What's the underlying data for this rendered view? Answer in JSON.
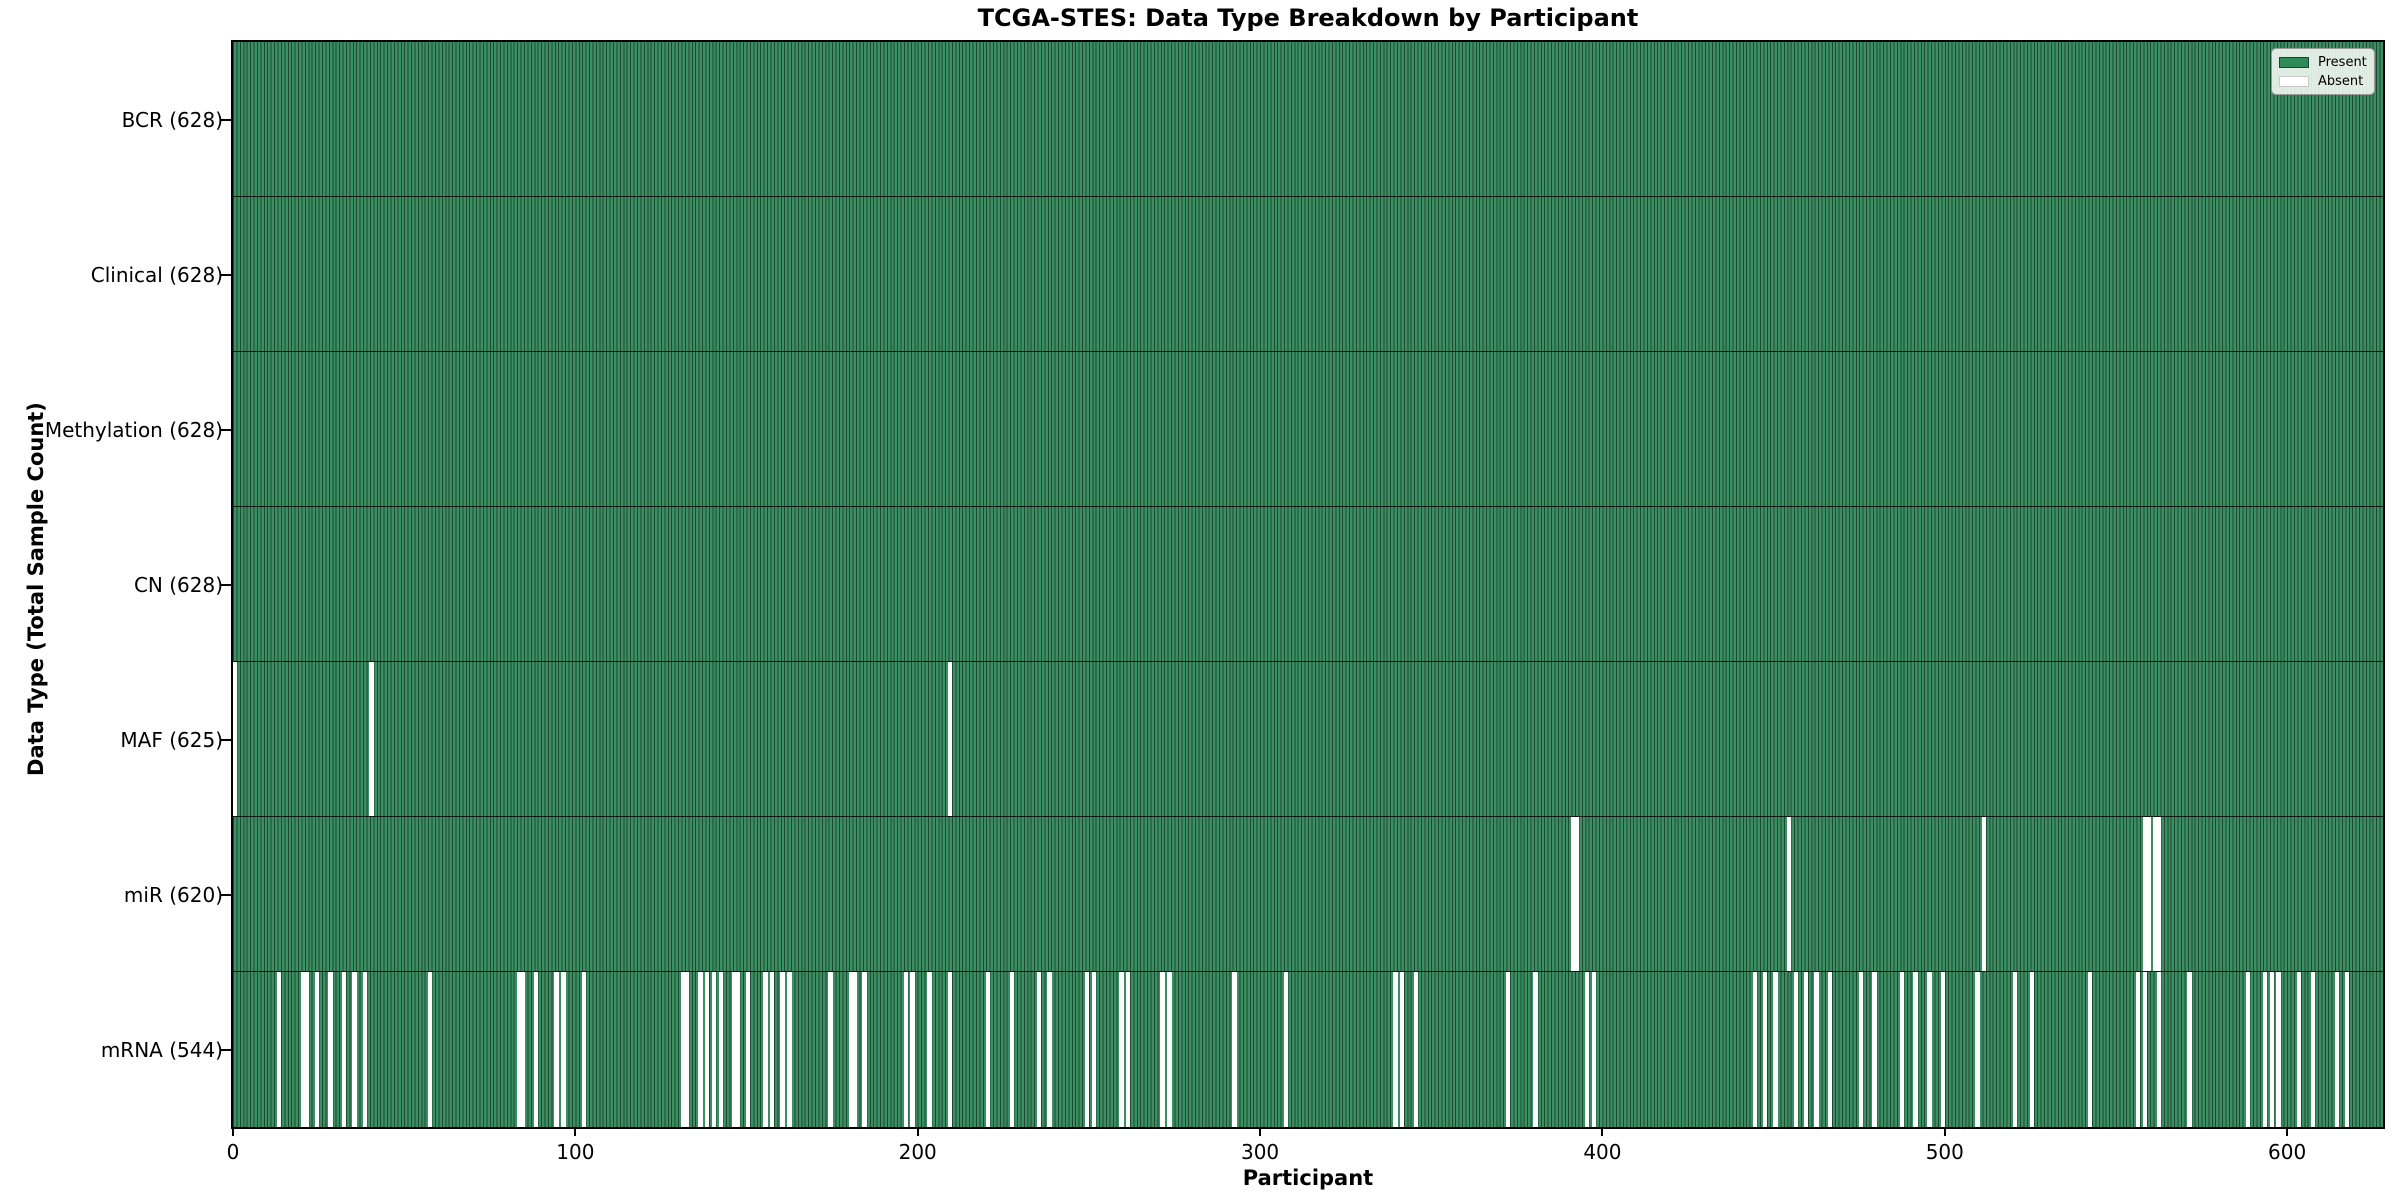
{
  "title": "TCGA-STES: Data Type Breakdown by Participant",
  "xlabel": "Participant",
  "ylabel": "Data Type (Total Sample Count)",
  "legend": {
    "present_label": "Present",
    "absent_label": "Absent"
  },
  "colors": {
    "present_fill": "#3C8F63",
    "present_edge": "#1C4A31",
    "absent": "#FFFFFF",
    "legend_present_swatch": "#2E8B57",
    "row_divider": "#0a0a0a",
    "axis": "#000000",
    "background": "#FFFFFF"
  },
  "chart_data": {
    "type": "heatmap",
    "title": "TCGA-STES: Data Type Breakdown by Participant",
    "xlabel": "Participant",
    "ylabel": "Data Type (Total Sample Count)",
    "legend_entries": [
      "Present",
      "Absent"
    ],
    "legend_position": "upper right",
    "n_participants": 628,
    "x_ticks": [
      0,
      100,
      200,
      300,
      400,
      500,
      600
    ],
    "value_encoding": {
      "present": "green",
      "absent": "white"
    },
    "rows": [
      {
        "name": "BCR",
        "label": "BCR (628)",
        "total": 628,
        "absent": []
      },
      {
        "name": "Clinical",
        "label": "Clinical (628)",
        "total": 628,
        "absent": []
      },
      {
        "name": "Methylation",
        "label": "Methylation (628)",
        "total": 628,
        "absent": []
      },
      {
        "name": "CN",
        "label": "CN (628)",
        "total": 628,
        "absent": []
      },
      {
        "name": "MAF",
        "label": "MAF (625)",
        "total": 625,
        "absent": [
          0,
          40,
          209
        ]
      },
      {
        "name": "miR",
        "label": "miR (620)",
        "total": 620,
        "absent": [
          391,
          392,
          454,
          511,
          558,
          559,
          561,
          562
        ]
      },
      {
        "name": "mRNA",
        "label": "mRNA (544)",
        "total": 544,
        "absent": [
          13,
          20,
          21,
          24,
          28,
          32,
          35,
          38,
          57,
          83,
          84,
          88,
          94,
          96,
          102,
          131,
          132,
          136,
          138,
          140,
          142,
          146,
          147,
          150,
          155,
          157,
          160,
          162,
          174,
          180,
          181,
          184,
          196,
          198,
          203,
          209,
          220,
          227,
          235,
          238,
          249,
          251,
          259,
          261,
          271,
          273,
          292,
          307,
          339,
          341,
          345,
          372,
          380,
          395,
          397,
          444,
          447,
          450,
          456,
          459,
          462,
          466,
          475,
          479,
          487,
          491,
          495,
          499,
          509,
          520,
          525,
          542,
          556,
          558,
          562,
          571,
          588,
          593,
          595,
          597,
          603,
          607,
          614,
          617
        ]
      }
    ]
  }
}
